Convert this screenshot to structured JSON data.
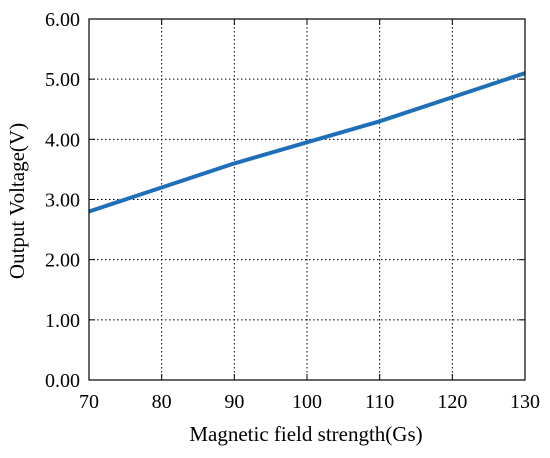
{
  "chart_data": {
    "type": "line",
    "xlabel": "Magnetic field strength(Gs)",
    "ylabel": "Output Voltage(V)",
    "xlim": [
      70,
      130
    ],
    "ylim": [
      0,
      6
    ],
    "x_ticks": [
      "70",
      "80",
      "90",
      "100",
      "110",
      "120",
      "130"
    ],
    "y_ticks": [
      "0.00",
      "1.00",
      "2.00",
      "3.00",
      "4.00",
      "5.00",
      "6.00"
    ],
    "grid": true,
    "grid_style": "dotted",
    "series": [
      {
        "color": "#1f6fb8",
        "points": [
          {
            "x": 70,
            "y": 2.8
          },
          {
            "x": 80,
            "y": 3.2
          },
          {
            "x": 90,
            "y": 3.6
          },
          {
            "x": 100,
            "y": 3.95
          },
          {
            "x": 110,
            "y": 4.3
          },
          {
            "x": 120,
            "y": 4.7
          },
          {
            "x": 130,
            "y": 5.1
          }
        ]
      }
    ]
  }
}
